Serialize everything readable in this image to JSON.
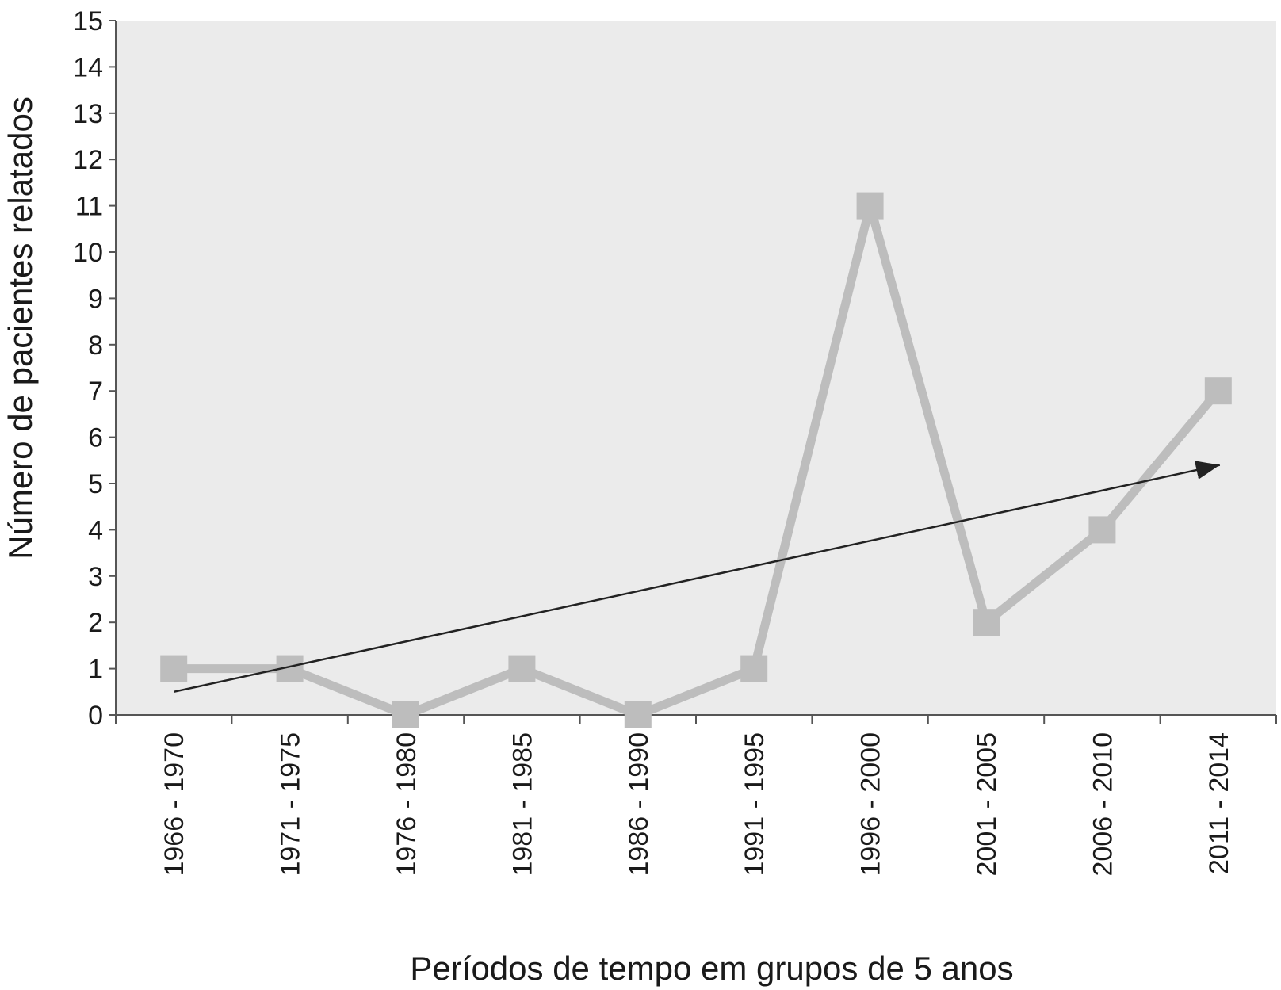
{
  "chart_data": {
    "type": "line",
    "title": "",
    "xlabel": "Períodos de tempo em grupos de 5 anos",
    "ylabel": "Número de pacientes relatados",
    "categories": [
      "1966 - 1970",
      "1971 - 1975",
      "1976 - 1980",
      "1981 - 1985",
      "1986 - 1990",
      "1991 - 1995",
      "1996 - 2000",
      "2001 - 2005",
      "2006 - 2010",
      "2011 - 2014"
    ],
    "series": [
      {
        "values": [
          1,
          1,
          0,
          1,
          0,
          1,
          11,
          2,
          4,
          7
        ],
        "color": "#bdbdbd",
        "marker": "square"
      }
    ],
    "trend_arrow": {
      "start": 0.5,
      "end": 5.4,
      "color": "#222222"
    },
    "ylim": [
      0,
      15
    ],
    "yticks": [
      0,
      1,
      2,
      3,
      4,
      5,
      6,
      7,
      8,
      9,
      10,
      11,
      12,
      13,
      14,
      15
    ],
    "plot_background": "#ebebeb",
    "grid": false,
    "legend": "none"
  }
}
